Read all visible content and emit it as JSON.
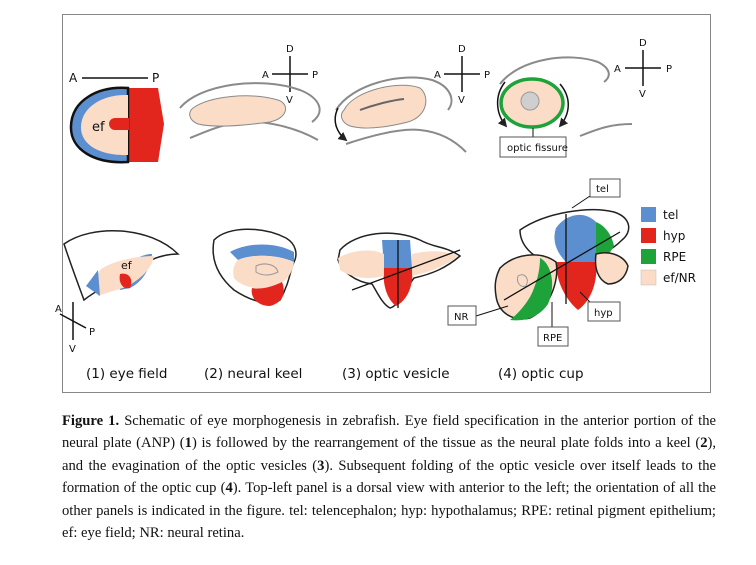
{
  "axes": {
    "A": "A",
    "P": "P",
    "D": "D",
    "V": "V"
  },
  "labels": {
    "ef_top": "ef",
    "ef_small": "ef",
    "optic_fissure": "optic fissure",
    "tel_box": "tel",
    "nr_box": "NR",
    "rpe_box": "RPE",
    "hyp_box": "hyp"
  },
  "legend": [
    {
      "label": "tel",
      "color": "#5b8fd0"
    },
    {
      "label": "hyp",
      "color": "#e3261d"
    },
    {
      "label": "RPE",
      "color": "#1ea23a"
    },
    {
      "label": "ef/NR",
      "color": "#fbdcc6"
    }
  ],
  "stages": [
    {
      "label": "(1) eye field"
    },
    {
      "label": "(2) neural keel"
    },
    {
      "label": "(3) optic vesicle"
    },
    {
      "label": "(4) optic cup"
    }
  ],
  "caption": {
    "figure_label": "Figure 1.",
    "text_1": " Schematic of eye morphogenesis in zebrafish. Eye field specification in the anterior portion of the neural plate (ANP) (",
    "ref_1": "1",
    "text_2": ") is followed by the rearrangement of the tissue as the neural plate folds into a keel (",
    "ref_2": "2",
    "text_3": "), and the evagination of the optic vesicles (",
    "ref_3": "3",
    "text_4": "). Subsequent folding of the optic vesicle over itself leads to the formation of the optic cup (",
    "ref_4": "4",
    "text_5": "). Top-left panel is a dorsal view with anterior to the left; the orientation of all the other panels is indicated in the figure. tel: telencephalon; hyp: hypothalamus; RPE: retinal pigment epithelium; ef: eye field; NR: neural retina."
  },
  "colors": {
    "tel": "#5b8fd0",
    "hyp": "#e3261d",
    "rpe": "#1ea23a",
    "ef": "#fbdcc6",
    "outline": "#222222",
    "gray_outline": "#8a8a8a"
  }
}
